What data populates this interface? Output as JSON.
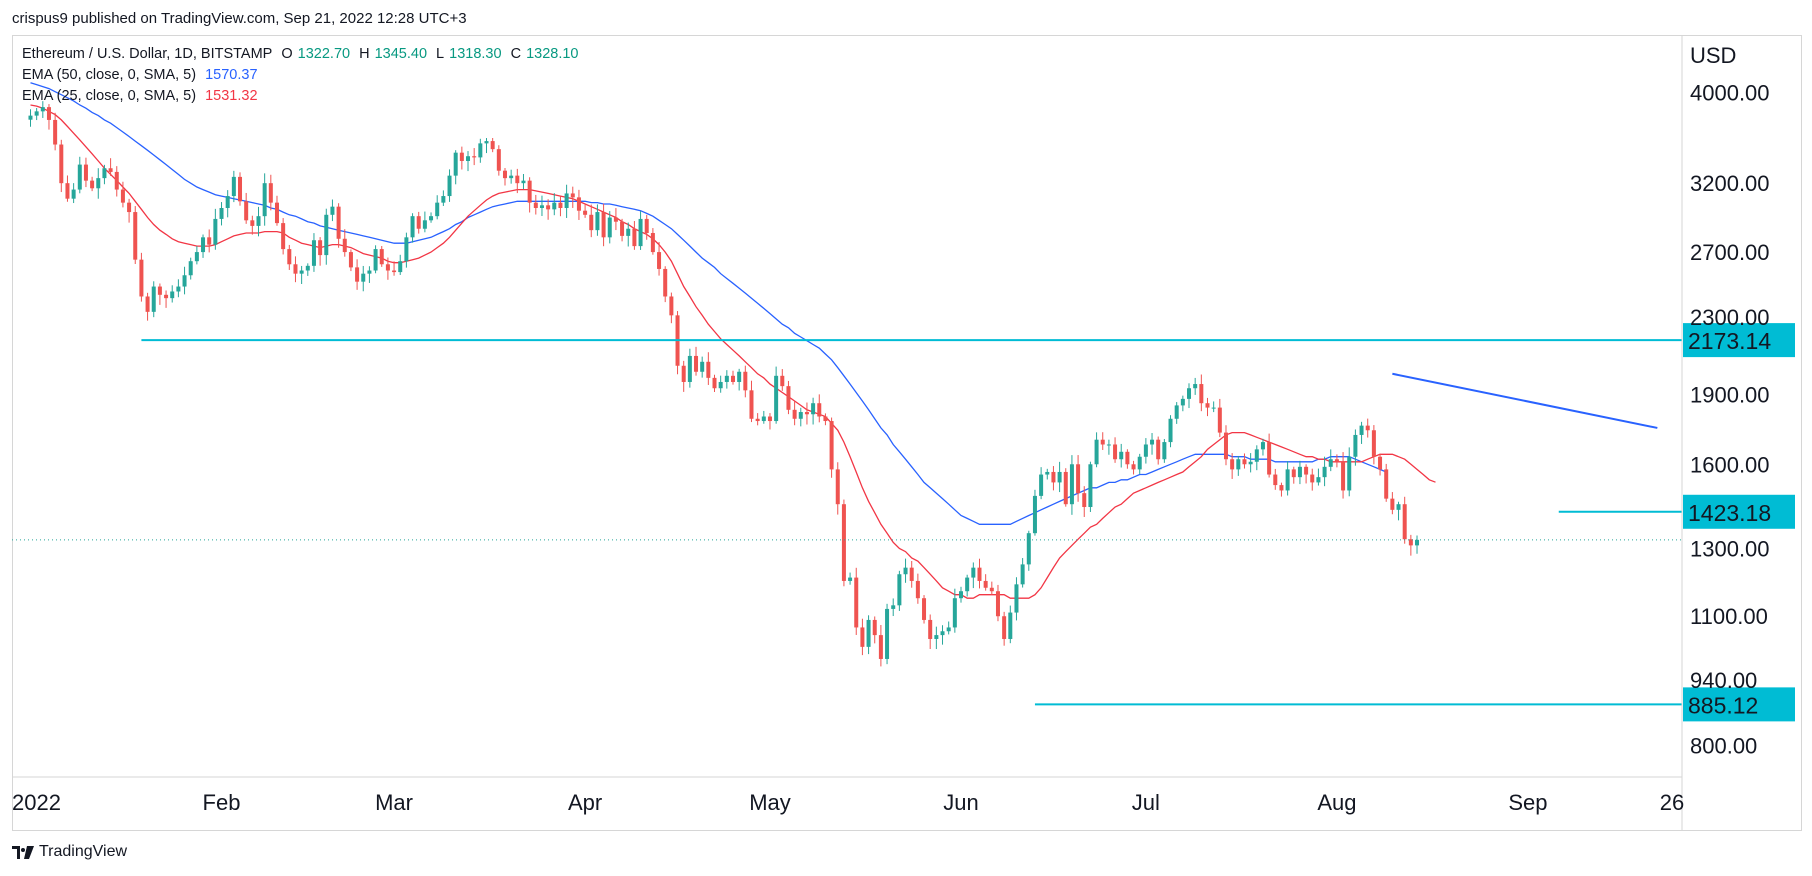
{
  "header": {
    "text": "crispus9 published on TradingView.com, Sep 21, 2022 12:28 UTC+3"
  },
  "legend": {
    "symbol": "Ethereum / U.S. Dollar, 1D, BITSTAMP",
    "ohlc": [
      {
        "key": "O",
        "value": "1322.70"
      },
      {
        "key": "H",
        "value": "1345.40"
      },
      {
        "key": "L",
        "value": "1318.30"
      },
      {
        "key": "C",
        "value": "1328.10"
      }
    ],
    "ema50": {
      "label": "EMA (50, close, 0, SMA, 5)",
      "value": "1570.37",
      "color": "#2962ff"
    },
    "ema25": {
      "label": "EMA (25, close, 0, SMA, 5)",
      "value": "1531.32",
      "color": "#f23645"
    }
  },
  "footer": {
    "brand": "TradingView"
  },
  "chart_data": {
    "type": "candlestick",
    "currency": "USD",
    "scale": "log",
    "ylim": [
      740,
      4600
    ],
    "y_ticks": [
      800,
      940,
      1100,
      1300,
      1600,
      1900,
      2300,
      2700,
      3200,
      4000
    ],
    "y_tick_labels": [
      "800.00",
      "940.00",
      "1100.00",
      "1300.00",
      "1600.00",
      "1900.00",
      "2300.00",
      "2700.00",
      "3200.00",
      "4000.00"
    ],
    "x_tick_labels": [
      {
        "label": "2022",
        "day": 0
      },
      {
        "label": "Feb",
        "day": 31
      },
      {
        "label": "Mar",
        "day": 59
      },
      {
        "label": "Apr",
        "day": 90
      },
      {
        "label": "May",
        "day": 120
      },
      {
        "label": "Jun",
        "day": 151
      },
      {
        "label": "Jul",
        "day": 181
      },
      {
        "label": "Aug",
        "day": 212
      },
      {
        "label": "Sep",
        "day": 243
      },
      {
        "label": "26",
        "day": 268
      }
    ],
    "x_range_days": [
      -3,
      268
    ],
    "up_color": "#26a69a",
    "down_color": "#ef5350",
    "level_color": "#00bcd4",
    "trend_color": "#2962ff",
    "closes": [
      3780,
      3820,
      3860,
      3740,
      3520,
      3200,
      3080,
      3150,
      3350,
      3220,
      3160,
      3240,
      3320,
      3290,
      3150,
      3050,
      2980,
      2650,
      2420,
      2330,
      2480,
      2430,
      2410,
      2450,
      2480,
      2550,
      2640,
      2700,
      2800,
      2750,
      2930,
      3010,
      3100,
      3250,
      3060,
      2920,
      2880,
      2950,
      3200,
      3050,
      2900,
      2720,
      2620,
      2560,
      2580,
      2610,
      2780,
      2680,
      2960,
      3020,
      2790,
      2700,
      2600,
      2510,
      2560,
      2580,
      2720,
      2620,
      2580,
      2570,
      2640,
      2800,
      2950,
      2860,
      2920,
      2950,
      3050,
      3100,
      3260,
      3450,
      3380,
      3420,
      3410,
      3530,
      3550,
      3480,
      3300,
      3240,
      3260,
      3200,
      3220,
      3050,
      3010,
      3030,
      3000,
      3050,
      3010,
      3120,
      3090,
      2990,
      2960,
      2850,
      2980,
      2800,
      2940,
      2910,
      2810,
      2860,
      2740,
      2930,
      2830,
      2700,
      2590,
      2420,
      2310,
      2040,
      1960,
      2090,
      2010,
      2060,
      1980,
      1930,
      1960,
      1990,
      1960,
      2010,
      1920,
      1790,
      1780,
      1800,
      1780,
      1990,
      1940,
      1830,
      1790,
      1820,
      1810,
      1860,
      1800,
      1780,
      1580,
      1450,
      1200,
      1210,
      1070,
      1020,
      1090,
      1050,
      990,
      1120,
      1130,
      1220,
      1240,
      1200,
      1150,
      1090,
      1040,
      1050,
      1060,
      1070,
      1150,
      1170,
      1210,
      1240,
      1200,
      1180,
      1170,
      1100,
      1040,
      1110,
      1190,
      1250,
      1350,
      1480,
      1560,
      1570,
      1530,
      1570,
      1450,
      1600,
      1490,
      1440,
      1600,
      1700,
      1680,
      1680,
      1620,
      1650,
      1600,
      1580,
      1630,
      1680,
      1700,
      1620,
      1690,
      1790,
      1850,
      1880,
      1930,
      1950,
      1860,
      1840,
      1840,
      1730,
      1620,
      1580,
      1620,
      1600,
      1610,
      1660,
      1690,
      1560,
      1520,
      1500,
      1580,
      1550,
      1590,
      1560,
      1530,
      1550,
      1590,
      1620,
      1610,
      1500,
      1630,
      1720,
      1760,
      1740,
      1630,
      1580,
      1470,
      1430,
      1450,
      1330,
      1310,
      1328
    ],
    "ema25": [
      3880,
      3870,
      3850,
      3820,
      3790,
      3740,
      3680,
      3620,
      3560,
      3500,
      3440,
      3380,
      3320,
      3270,
      3220,
      3170,
      3120,
      3060,
      3000,
      2940,
      2890,
      2850,
      2820,
      2790,
      2770,
      2760,
      2750,
      2740,
      2740,
      2740,
      2750,
      2770,
      2790,
      2810,
      2820,
      2830,
      2830,
      2830,
      2840,
      2840,
      2840,
      2830,
      2800,
      2780,
      2760,
      2750,
      2740,
      2730,
      2740,
      2750,
      2750,
      2740,
      2730,
      2710,
      2690,
      2680,
      2670,
      2660,
      2640,
      2630,
      2630,
      2640,
      2650,
      2660,
      2680,
      2700,
      2730,
      2760,
      2800,
      2850,
      2900,
      2950,
      2990,
      3030,
      3070,
      3100,
      3120,
      3130,
      3140,
      3150,
      3150,
      3150,
      3140,
      3130,
      3120,
      3110,
      3100,
      3090,
      3080,
      3060,
      3040,
      3020,
      3000,
      2980,
      2960,
      2940,
      2910,
      2890,
      2860,
      2840,
      2820,
      2790,
      2750,
      2700,
      2640,
      2560,
      2480,
      2420,
      2360,
      2310,
      2260,
      2220,
      2180,
      2150,
      2120,
      2090,
      2060,
      2030,
      2000,
      1980,
      1950,
      1930,
      1910,
      1890,
      1870,
      1850,
      1830,
      1820,
      1810,
      1800,
      1770,
      1740,
      1690,
      1630,
      1570,
      1510,
      1460,
      1420,
      1380,
      1350,
      1320,
      1300,
      1290,
      1270,
      1260,
      1240,
      1220,
      1200,
      1180,
      1170,
      1160,
      1160,
      1150,
      1150,
      1160,
      1160,
      1160,
      1160,
      1160,
      1150,
      1150,
      1150,
      1150,
      1160,
      1180,
      1210,
      1240,
      1270,
      1290,
      1310,
      1330,
      1350,
      1370,
      1380,
      1400,
      1420,
      1440,
      1450,
      1470,
      1490,
      1500,
      1510,
      1520,
      1530,
      1540,
      1550,
      1560,
      1570,
      1590,
      1610,
      1630,
      1660,
      1680,
      1700,
      1720,
      1730,
      1730,
      1730,
      1720,
      1710,
      1700,
      1690,
      1680,
      1670,
      1660,
      1650,
      1640,
      1630,
      1630,
      1620,
      1620,
      1610,
      1610,
      1610,
      1610,
      1610,
      1610,
      1620,
      1630,
      1640,
      1640,
      1640,
      1630,
      1620,
      1600,
      1580,
      1560,
      1540,
      1531
    ],
    "ema50": [
      4100,
      4080,
      4060,
      4040,
      4010,
      3980,
      3950,
      3920,
      3880,
      3850,
      3810,
      3780,
      3740,
      3710,
      3670,
      3630,
      3590,
      3550,
      3510,
      3470,
      3430,
      3390,
      3350,
      3310,
      3270,
      3230,
      3200,
      3170,
      3150,
      3130,
      3110,
      3100,
      3090,
      3080,
      3070,
      3060,
      3050,
      3040,
      3030,
      3010,
      3000,
      2980,
      2960,
      2950,
      2930,
      2910,
      2900,
      2880,
      2870,
      2860,
      2850,
      2840,
      2830,
      2820,
      2810,
      2800,
      2790,
      2780,
      2770,
      2760,
      2760,
      2760,
      2770,
      2780,
      2790,
      2800,
      2820,
      2840,
      2860,
      2890,
      2910,
      2940,
      2960,
      2980,
      3000,
      3020,
      3030,
      3040,
      3050,
      3060,
      3060,
      3060,
      3060,
      3060,
      3060,
      3060,
      3060,
      3060,
      3060,
      3060,
      3060,
      3050,
      3050,
      3040,
      3040,
      3030,
      3020,
      3010,
      3000,
      2990,
      2970,
      2950,
      2920,
      2890,
      2860,
      2820,
      2780,
      2740,
      2700,
      2660,
      2630,
      2600,
      2560,
      2530,
      2500,
      2470,
      2440,
      2410,
      2380,
      2350,
      2320,
      2290,
      2260,
      2240,
      2210,
      2190,
      2170,
      2150,
      2130,
      2100,
      2070,
      2030,
      1990,
      1950,
      1910,
      1870,
      1830,
      1790,
      1750,
      1720,
      1680,
      1650,
      1620,
      1590,
      1560,
      1530,
      1510,
      1490,
      1470,
      1450,
      1430,
      1410,
      1400,
      1390,
      1380,
      1380,
      1380,
      1380,
      1380,
      1380,
      1390,
      1400,
      1410,
      1420,
      1430,
      1440,
      1450,
      1460,
      1470,
      1480,
      1490,
      1500,
      1510,
      1510,
      1520,
      1530,
      1530,
      1540,
      1540,
      1550,
      1560,
      1560,
      1570,
      1580,
      1590,
      1600,
      1610,
      1620,
      1630,
      1640,
      1640,
      1640,
      1640,
      1640,
      1640,
      1630,
      1630,
      1630,
      1620,
      1620,
      1620,
      1620,
      1610,
      1610,
      1610,
      1610,
      1610,
      1610,
      1610,
      1620,
      1620,
      1630,
      1630,
      1630,
      1630,
      1620,
      1610,
      1600,
      1590,
      1580,
      1570
    ],
    "levels": [
      {
        "value": 2173.14,
        "label": "2173.14",
        "from_day": 18
      },
      {
        "value": 1423.18,
        "label": "1423.18",
        "from_day": 248
      },
      {
        "value": 885.12,
        "label": "885.12",
        "from_day": 163
      }
    ],
    "trendline": {
      "from": {
        "day": 221,
        "value": 2000
      },
      "to": {
        "day": 264,
        "value": 1750
      }
    },
    "current_price": 1328.1
  }
}
